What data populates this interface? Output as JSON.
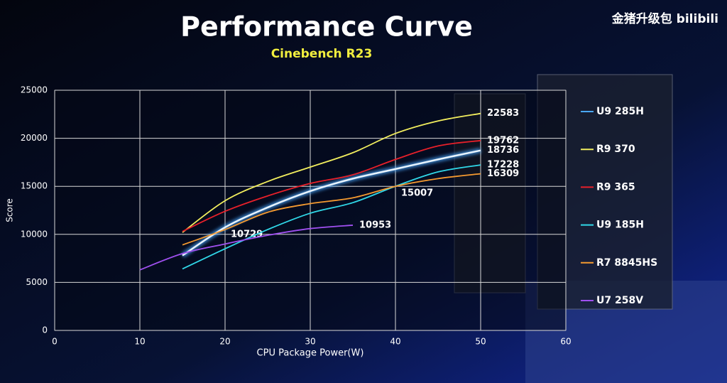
{
  "chart_data": {
    "type": "line",
    "title": "Performance Curve",
    "subtitle": "Cinebench R23",
    "watermark": "金猪升级包 bilibili",
    "x_label": "CPU Package Power(W)",
    "y_label": "Score",
    "xlim": [
      0,
      60
    ],
    "xticks": [
      0,
      10,
      20,
      30,
      40,
      50,
      60
    ],
    "ylim": [
      0,
      25000
    ],
    "yticks": [
      0,
      5000,
      10000,
      15000,
      20000,
      25000
    ],
    "grid": true,
    "legend": "right",
    "series": [
      {
        "name": "U9 285H",
        "color": "#4aa8ff",
        "x": [
          15,
          20,
          25,
          30,
          35,
          40,
          45,
          50
        ],
        "values": [
          7800,
          10729,
          12800,
          14500,
          15800,
          16800,
          17800,
          18736
        ],
        "value_labels": [
          null,
          "10729",
          null,
          null,
          null,
          null,
          null,
          "18736"
        ]
      },
      {
        "name": "R9 370",
        "color": "#f2ee5e",
        "x": [
          15,
          20,
          25,
          30,
          35,
          40,
          45,
          50
        ],
        "values": [
          10200,
          13500,
          15500,
          17000,
          18500,
          20500,
          21800,
          22583
        ],
        "value_labels": [
          null,
          null,
          null,
          null,
          null,
          null,
          null,
          "22583"
        ]
      },
      {
        "name": "R9 365",
        "color": "#e8202a",
        "x": [
          15,
          20,
          25,
          30,
          35,
          40,
          45,
          50
        ],
        "values": [
          10300,
          12400,
          14000,
          15300,
          16200,
          17800,
          19200,
          19762
        ],
        "value_labels": [
          null,
          null,
          null,
          null,
          null,
          null,
          null,
          "19762"
        ]
      },
      {
        "name": "U9 185H",
        "color": "#30d8e8",
        "x": [
          15,
          20,
          25,
          30,
          35,
          40,
          45,
          50
        ],
        "values": [
          6400,
          8500,
          10500,
          12200,
          13300,
          15007,
          16500,
          17228
        ],
        "value_labels": [
          null,
          null,
          null,
          null,
          null,
          "15007",
          null,
          "17228"
        ]
      },
      {
        "name": "R7 8845HS",
        "color": "#f59a30",
        "x": [
          15,
          20,
          25,
          30,
          35,
          40,
          45,
          50
        ],
        "values": [
          8900,
          10500,
          12300,
          13200,
          13800,
          15000,
          15800,
          16309
        ],
        "value_labels": [
          null,
          null,
          null,
          null,
          null,
          null,
          null,
          "16309"
        ]
      },
      {
        "name": "U7 258V",
        "color": "#a050f0",
        "x": [
          10,
          15,
          20,
          25,
          30,
          35
        ],
        "values": [
          6300,
          8000,
          9000,
          9900,
          10600,
          10953
        ],
        "value_labels": [
          null,
          null,
          null,
          null,
          null,
          "10953"
        ]
      }
    ]
  }
}
